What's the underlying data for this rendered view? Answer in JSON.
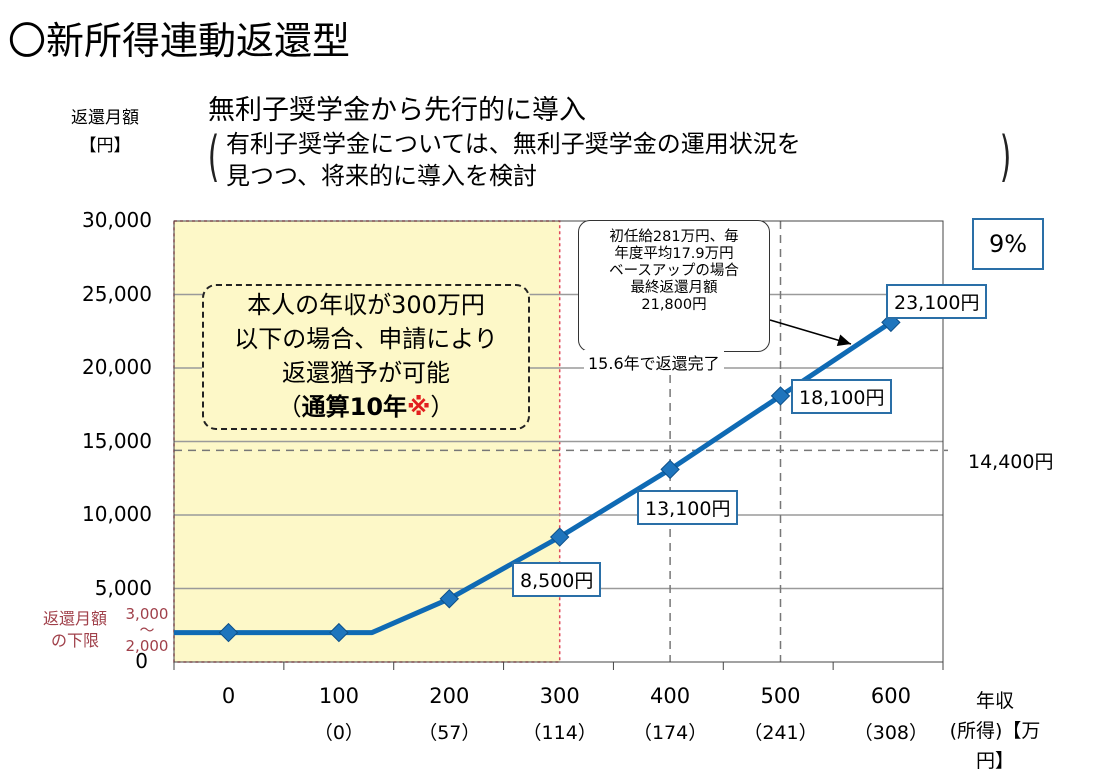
{
  "page_title": "〇新所得連動返還型",
  "y_unit": {
    "line1": "返還月額",
    "line2": "【円】"
  },
  "subtitle": "無利子奨学金から先行的に導入",
  "note": {
    "line1": "有利子奨学金については、無利子奨学金の運用状況を",
    "line2": "見つつ、将来的に導入を検討"
  },
  "rate_label": "9%",
  "deferral": {
    "line1": "本人の年収が300万円",
    "line2": "以下の場合、申請により",
    "line3": "返還猶予が可能",
    "line4_prefix": "（",
    "line4_strong": "通算10年",
    "line4_mark": "※",
    "line4_suffix": "）"
  },
  "annotation": {
    "line1": "初任給281万円、毎",
    "line2": "年度平均17.9万円",
    "line3": "ベースアップの場合",
    "line4": "最終返還月額",
    "line5": "21,800円"
  },
  "completion_label": "15.6年で返還完了",
  "reference_label": "14,400円",
  "lower_limit": {
    "line1": "返還月額",
    "line2": "の下限",
    "upper": "3,000",
    "tilde": "～",
    "lower": "2,000"
  },
  "x_axis_label": {
    "line1": "年収",
    "line2": "(所得)【万円】"
  },
  "colors": {
    "line": "#0f6ab4",
    "deferral_fill": "#fdf8c8",
    "deferral_border": "#e0485a",
    "callout_border": "#2a6fa7",
    "lower_limit_text": "#a0404a"
  },
  "chart_data": {
    "type": "line",
    "title": "",
    "xlabel": "年収(所得)【万円】",
    "ylabel": "返還月額【円】",
    "ylim": [
      0,
      30000
    ],
    "yticks": [
      "0",
      "5,000",
      "10,000",
      "15,000",
      "20,000",
      "25,000",
      "30,000"
    ],
    "xticks": [
      {
        "income": "0",
        "earned": ""
      },
      {
        "income": "100",
        "earned": "（0）"
      },
      {
        "income": "200",
        "earned": "（57）"
      },
      {
        "income": "300",
        "earned": "（114）"
      },
      {
        "income": "400",
        "earned": "（174）"
      },
      {
        "income": "500",
        "earned": "（241）"
      },
      {
        "income": "600",
        "earned": "（308）"
      }
    ],
    "series": [
      {
        "points": [
          [
            -50,
            2000
          ],
          [
            0,
            2000
          ],
          [
            100,
            2000
          ],
          [
            130,
            2000
          ],
          [
            200,
            4300
          ],
          [
            300,
            8500
          ],
          [
            400,
            13100
          ],
          [
            500,
            18100
          ],
          [
            600,
            23100
          ]
        ],
        "markers": [
          0,
          100,
          200,
          300,
          400,
          500,
          600
        ]
      }
    ],
    "data_labels": [
      {
        "x": 300,
        "text": "8,500円"
      },
      {
        "x": 400,
        "text": "13,100円"
      },
      {
        "x": 500,
        "text": "18,100円"
      },
      {
        "x": 600,
        "text": "23,100円"
      }
    ],
    "reference_lines": {
      "horizontal": 14400,
      "vertical": [
        400,
        500
      ]
    },
    "deferral_region": {
      "x_max": 300
    },
    "grid": true
  }
}
